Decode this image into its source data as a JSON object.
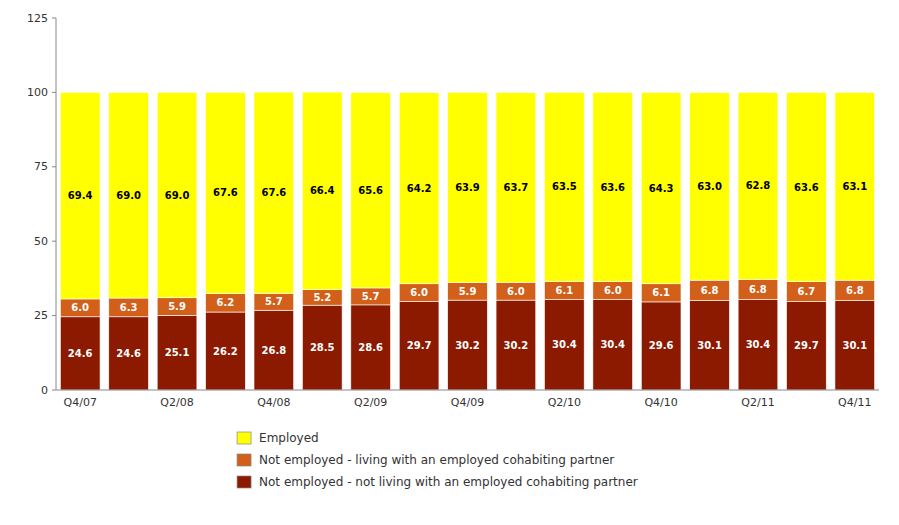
{
  "chart_data": {
    "type": "bar",
    "stacked": true,
    "data_labels": true,
    "grid": false,
    "categories": [
      "Q4/07",
      null,
      "Q2/08",
      null,
      "Q4/08",
      null,
      "Q2/09",
      null,
      "Q4/09",
      null,
      "Q2/10",
      null,
      "Q4/10",
      null,
      "Q2/11",
      null,
      "Q4/11"
    ],
    "series": [
      {
        "name": "Not employed - not living with an employed cohabiting partner",
        "color": "#8B1A00",
        "values": [
          24.6,
          24.6,
          25.1,
          26.2,
          26.8,
          28.5,
          28.6,
          29.7,
          30.2,
          30.2,
          30.4,
          30.4,
          29.6,
          30.1,
          30.4,
          29.7,
          30.1
        ]
      },
      {
        "name": "Not employed - living with an employed cohabiting partner",
        "color": "#D2601A",
        "values": [
          6.0,
          6.3,
          5.9,
          6.2,
          5.7,
          5.2,
          5.7,
          6.0,
          5.9,
          6.0,
          6.1,
          6.0,
          6.1,
          6.8,
          6.8,
          6.7,
          6.8
        ],
        "value_labels": [
          "6.0",
          "6.3",
          "5.9",
          "6.2",
          "5.7",
          "5.2",
          "5.7",
          "6.0",
          "5.9",
          "6.0",
          "6.1",
          "6.0",
          "6.1",
          "6.8",
          "6.8",
          "6.7",
          "6.8"
        ]
      },
      {
        "name": "Employed",
        "color": "#FFFF00",
        "values": [
          69.4,
          69.0,
          69.0,
          67.6,
          67.6,
          66.4,
          65.6,
          64.2,
          63.9,
          63.7,
          63.5,
          63.6,
          64.3,
          63.0,
          62.8,
          63.6,
          63.1
        ],
        "value_labels": [
          "69.4",
          "69.0",
          "69.0",
          "67.6",
          "67.6",
          "66.4",
          "65.6",
          "64.2",
          "63.9",
          "63.7",
          "63.5",
          "63.6",
          "64.3",
          "63.0",
          "62.8",
          "63.6",
          "63.1"
        ]
      }
    ],
    "ylim": [
      0,
      125
    ],
    "yticks": [
      0,
      25,
      50,
      75,
      100,
      125
    ]
  }
}
